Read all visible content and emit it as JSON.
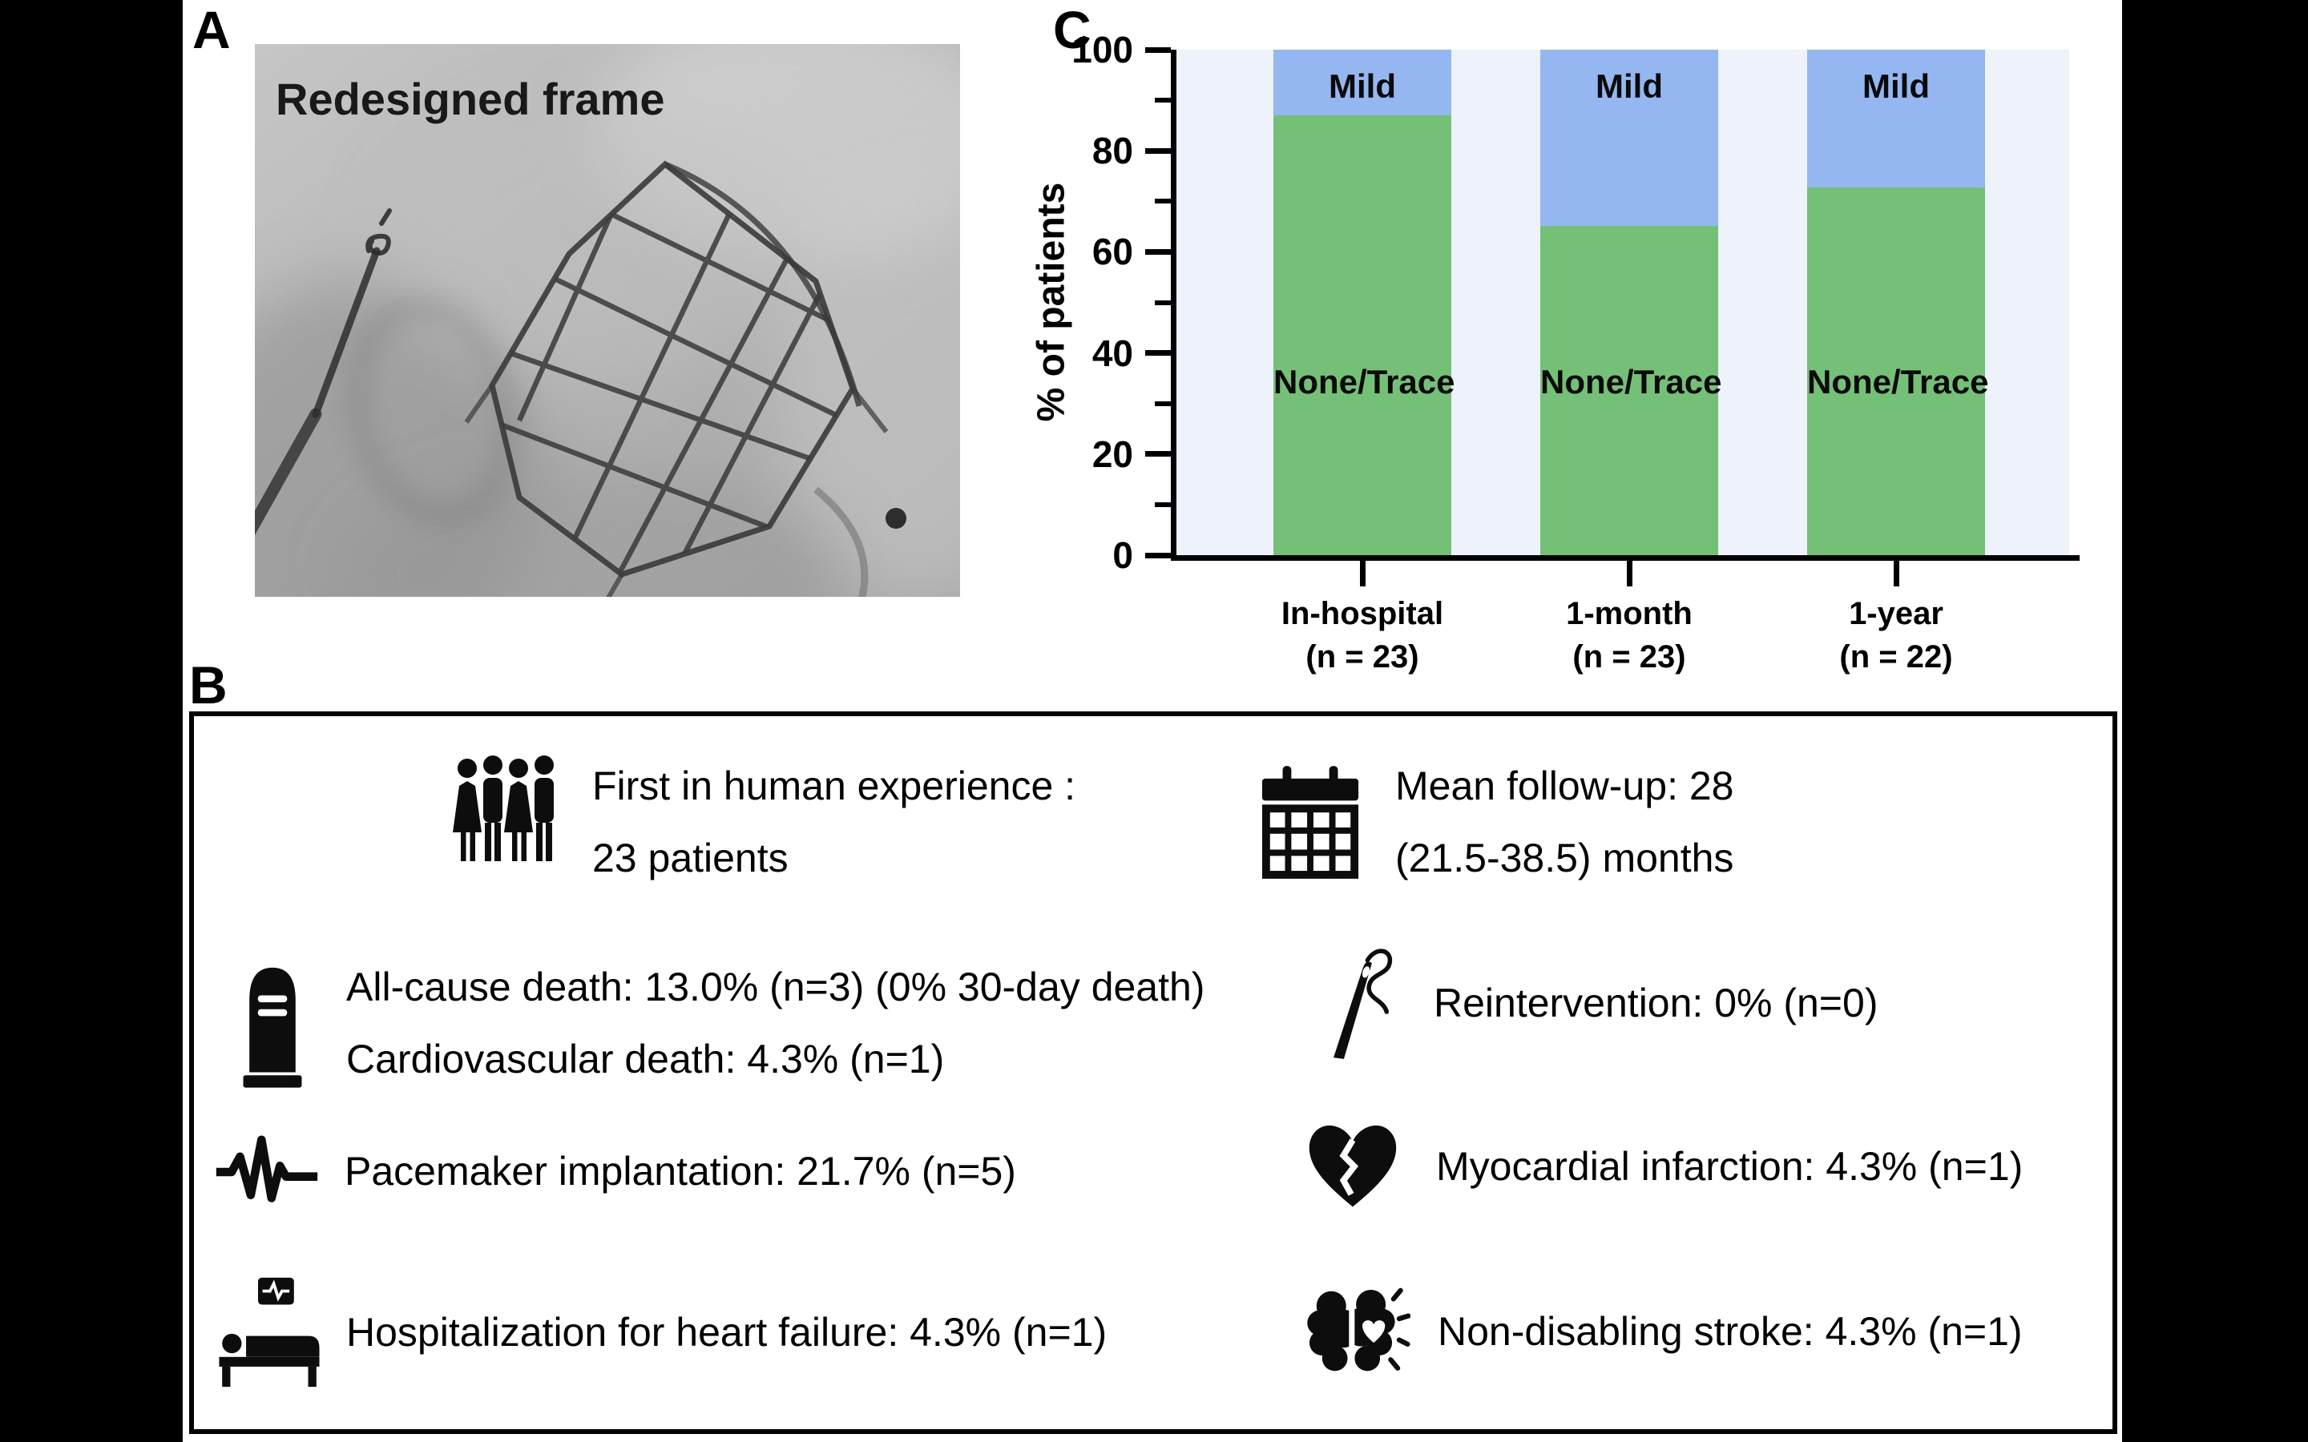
{
  "panels": {
    "a": {
      "label": "A",
      "image_caption": "Redesigned frame"
    },
    "b": {
      "label": "B",
      "items": [
        {
          "icon": "people-group-icon",
          "lines": [
            "First in human experience :",
            "23 patients"
          ]
        },
        {
          "icon": "calendar-icon",
          "lines": [
            "Mean follow-up: 28",
            "(21.5-38.5) months"
          ]
        },
        {
          "icon": "tombstone-icon",
          "lines": [
            "All-cause death: 13.0% (n=3) (0% 30-day death)",
            "Cardiovascular death: 4.3% (n=1)"
          ]
        },
        {
          "icon": "needle-thread-icon",
          "lines": [
            "Reintervention: 0%  (n=0)"
          ]
        },
        {
          "icon": "ecg-pulse-icon",
          "lines": [
            "Pacemaker implantation: 21.7%  (n=5)"
          ]
        },
        {
          "icon": "broken-heart-icon",
          "lines": [
            "Myocardial infarction: 4.3%  (n=1)"
          ]
        },
        {
          "icon": "hospital-bed-icon",
          "lines": [
            "Hospitalization for heart failure: 4.3%  (n=1)"
          ]
        },
        {
          "icon": "brain-stroke-icon",
          "lines": [
            "Non-disabling stroke: 4.3%  (n=1)"
          ]
        }
      ]
    },
    "c": {
      "label": "C"
    }
  },
  "chart_data": {
    "type": "bar",
    "stacked": true,
    "categories": [
      "In-hospital",
      "1-month",
      "1-year"
    ],
    "category_sublabels": [
      "(n = 23)",
      "(n = 23)",
      "(n = 22)"
    ],
    "series": [
      {
        "name": "None/Trace",
        "color": "#74C076",
        "values": [
          87.0,
          65.2,
          72.7
        ]
      },
      {
        "name": "Mild",
        "color": "#94B7F2",
        "values": [
          13.0,
          34.8,
          27.3
        ]
      }
    ],
    "title": "",
    "xlabel": "",
    "ylabel": "% of patients",
    "ylim": [
      0,
      100
    ],
    "yticks_major": [
      0,
      20,
      40,
      60,
      80,
      100
    ],
    "yticks_minor": [
      10,
      30,
      50,
      70,
      90
    ],
    "plot_bg": "#EEF2FB",
    "grid": false,
    "legend": "labels drawn inside bar segments"
  }
}
